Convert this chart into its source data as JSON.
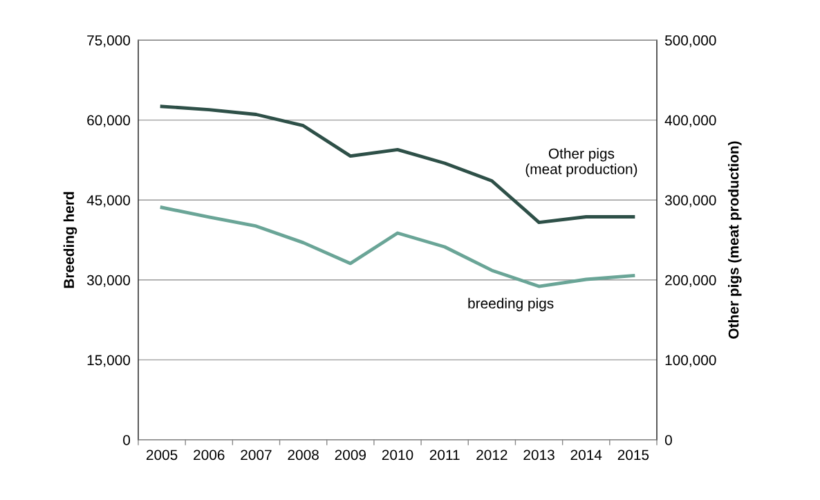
{
  "chart_data": {
    "type": "line",
    "ylabel": "Breeding herd",
    "y2label": "Other pigs (meat production)",
    "categories": [
      "2005",
      "2006",
      "2007",
      "2008",
      "2009",
      "2010",
      "2011",
      "2012",
      "2013",
      "2014",
      "2015"
    ],
    "series": [
      {
        "name": "Other pigs\n(meat production)",
        "color": "#2e5048",
        "axis": "y2",
        "values": [
          417000,
          413000,
          407000,
          393000,
          355000,
          363000,
          346000,
          324000,
          272000,
          279000,
          279000
        ]
      },
      {
        "name": "breeding pigs",
        "color": "#6aa597",
        "values": [
          43600,
          41800,
          40100,
          37000,
          33100,
          38800,
          36200,
          31800,
          28800,
          30100,
          30800
        ]
      }
    ],
    "ylim": [
      0,
      75000
    ],
    "yticks": [
      {
        "value": 0,
        "label": "0"
      },
      {
        "value": 15000,
        "label": "15,000"
      },
      {
        "value": 30000,
        "label": "30,000"
      },
      {
        "value": 45000,
        "label": "45,000"
      },
      {
        "value": 60000,
        "label": "60,000"
      },
      {
        "value": 75000,
        "label": "75,000"
      }
    ],
    "y2lim": [
      0,
      500000
    ],
    "y2ticks": [
      {
        "value": 0,
        "label": "0"
      },
      {
        "value": 100000,
        "label": "100,000"
      },
      {
        "value": 200000,
        "label": "200,000"
      },
      {
        "value": 300000,
        "label": "300,000"
      },
      {
        "value": 400000,
        "label": "400,000"
      },
      {
        "value": 500000,
        "label": "500,000"
      }
    ],
    "grid": "y",
    "legend": false,
    "marker": "none",
    "line_style": "solid"
  }
}
